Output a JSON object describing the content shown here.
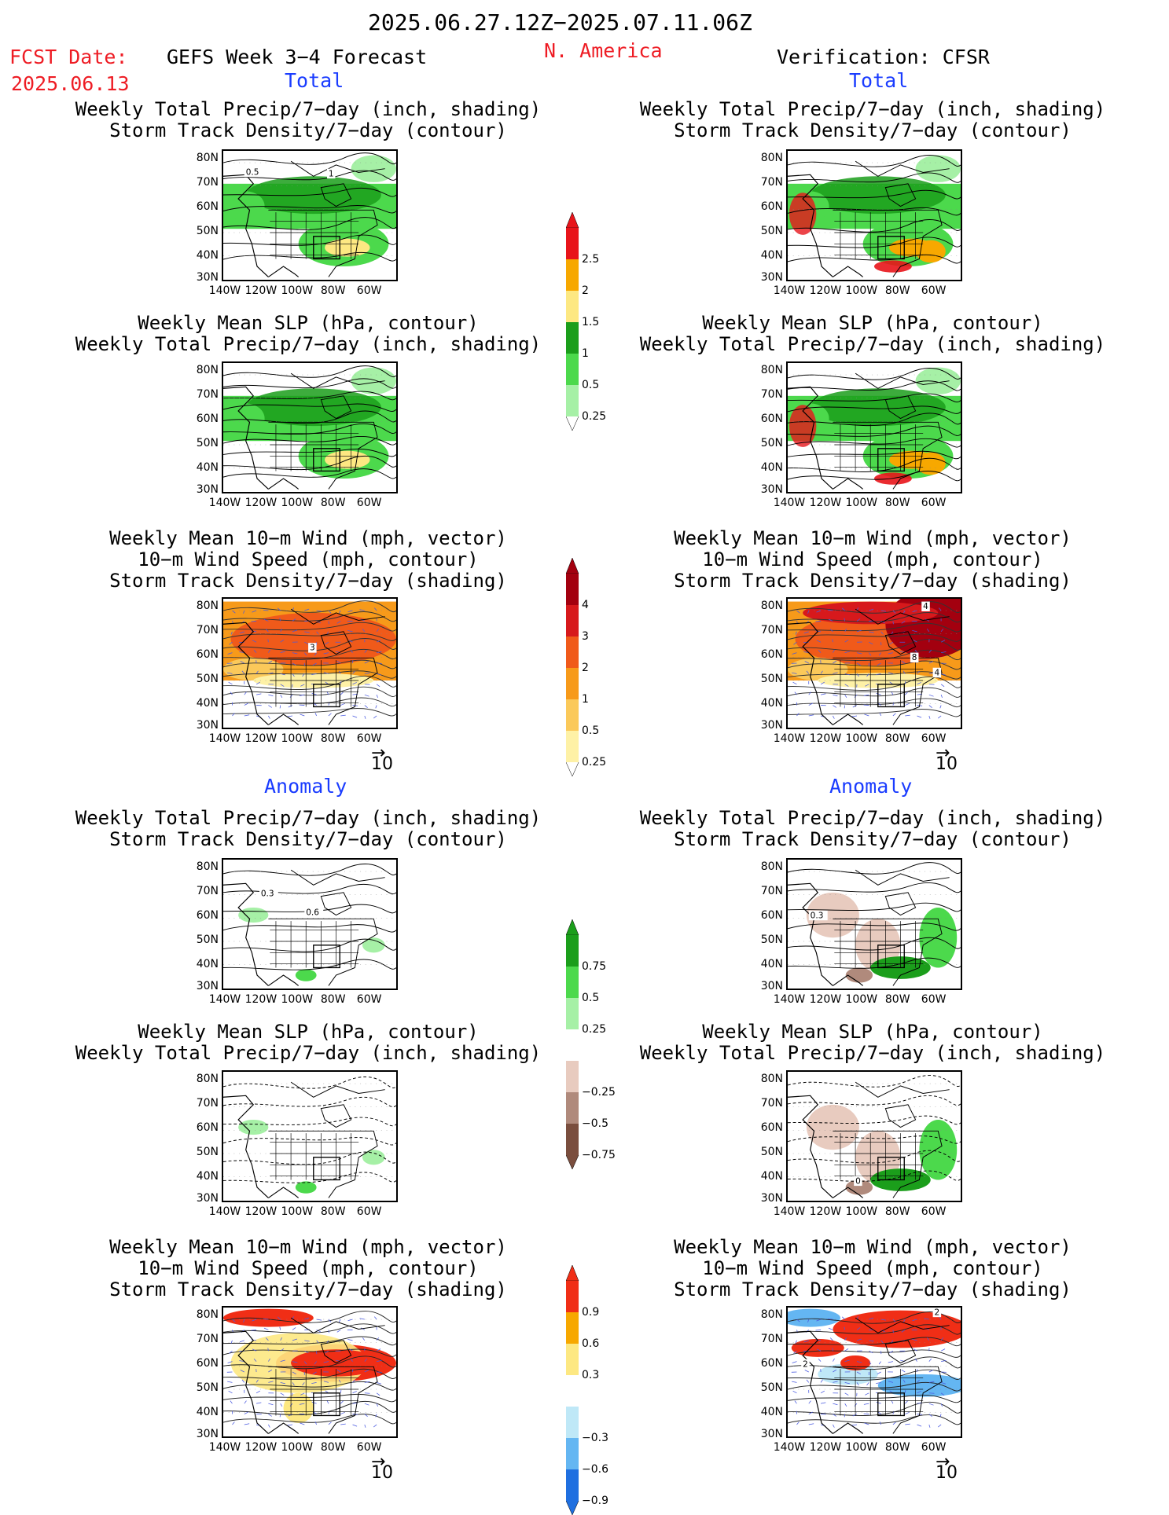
{
  "header": {
    "date_range": "2025.06.27.12Z−2025.07.11.06Z",
    "fcst_label": "FCST Date:",
    "fcst_date": "2025.06.13",
    "forecast_title": "GEFS Week 3−4 Forecast",
    "region": "N. America",
    "verification": "Verification: CFSR"
  },
  "sections": {
    "total": "Total",
    "anomaly": "Anomaly"
  },
  "panel_titles": {
    "precip_storm": [
      "Weekly Total Precip/7−day (inch, shading)",
      "Storm Track Density/7−day (contour)"
    ],
    "slp_precip": [
      "Weekly Mean SLP (hPa, contour)",
      "Weekly Total Precip/7−day (inch, shading)"
    ],
    "wind_storm": [
      "Weekly Mean 10−m Wind (mph, vector)",
      "10−m Wind Speed (mph, contour)",
      "Storm Track Density/7−day (shading)"
    ]
  },
  "axes": {
    "lat_ticks": [
      "80N",
      "70N",
      "60N",
      "50N",
      "40N",
      "30N"
    ],
    "lon_ticks": [
      "140W",
      "120W",
      "100W",
      "80W",
      "60W"
    ]
  },
  "vector_ref": "10",
  "contour_labels": {
    "left_total_precip": [
      "0.5",
      "1"
    ],
    "left_total_wind": [
      "3"
    ],
    "right_total_wind": [
      "4",
      "8",
      "4"
    ],
    "left_anom_precip": [
      "0.3",
      "0.6"
    ],
    "right_anom_precip": [
      "0.3"
    ],
    "right_anom_slp": [
      "0"
    ],
    "right_anom_wind": [
      "2",
      "2"
    ]
  },
  "colorbars": {
    "precip_total": {
      "labels": [
        "2.5",
        "2",
        "1.5",
        "1",
        "0.5",
        "0.25"
      ],
      "colors": [
        "#e8141a",
        "#f7a800",
        "#fde882",
        "#1b9e1b",
        "#4cd94c",
        "#a6f0a6"
      ]
    },
    "storm_total": {
      "labels": [
        "4",
        "3",
        "2",
        "1",
        "0.5",
        "0.25"
      ],
      "colors": [
        "#a3000f",
        "#d7191c",
        "#f05a1a",
        "#f79a1a",
        "#fbc95a",
        "#fef1a6"
      ]
    },
    "precip_anom": {
      "labels": [
        "0.75",
        "0.5",
        "0.25",
        "−0.25",
        "−0.5",
        "−0.75"
      ],
      "colors": [
        "#1b9e1b",
        "#4cd94c",
        "#a6f0a6",
        "#ffffff",
        "#e8cbbf",
        "#b08a7c",
        "#7a4e3e"
      ]
    },
    "storm_anom": {
      "labels": [
        "0.9",
        "0.6",
        "0.3",
        "−0.3",
        "−0.6",
        "−0.9"
      ],
      "colors": [
        "#f02e16",
        "#f7a800",
        "#fde882",
        "#ffffff",
        "#bfe8f7",
        "#64b6f2",
        "#1f6fe0"
      ]
    }
  }
}
